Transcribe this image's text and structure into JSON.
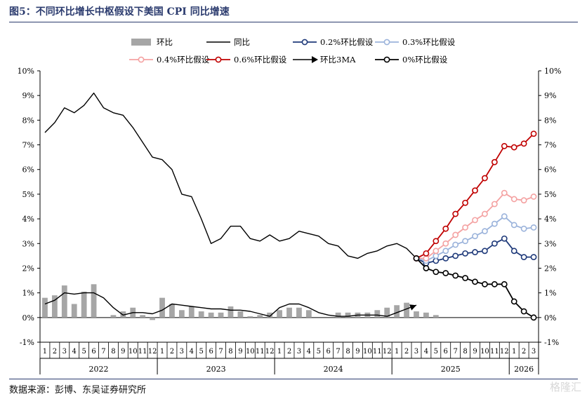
{
  "figure": {
    "title": "图5：不同环比增长中枢假设下美国 CPI 同比增速",
    "source": "数据来源：彭博、东吴证券研究所",
    "watermark": "格隆汇"
  },
  "chart_data": {
    "type": "line",
    "ylim": [
      -1,
      10
    ],
    "yticks": [
      "-1%",
      "0%",
      "1%",
      "2%",
      "3%",
      "4%",
      "5%",
      "6%",
      "7%",
      "8%",
      "9%",
      "10%"
    ],
    "grid": false,
    "legend_position": "top",
    "months": [
      "1",
      "2",
      "3",
      "4",
      "5",
      "6",
      "7",
      "8",
      "9",
      "10",
      "11",
      "12",
      "1",
      "2",
      "3",
      "4",
      "5",
      "6",
      "7",
      "8",
      "9",
      "10",
      "11",
      "12",
      "1",
      "2",
      "3",
      "4",
      "5",
      "6",
      "7",
      "8",
      "9",
      "10",
      "11",
      "12",
      "1",
      "2",
      "3",
      "4",
      "5",
      "6",
      "7",
      "8",
      "9",
      "10",
      "11",
      "12",
      "1",
      "2",
      "3"
    ],
    "years": [
      {
        "label": "2022",
        "start": 0,
        "end": 11
      },
      {
        "label": "2023",
        "start": 12,
        "end": 23
      },
      {
        "label": "2024",
        "start": 24,
        "end": 35
      },
      {
        "label": "2025",
        "start": 36,
        "end": 47
      },
      {
        "label": "2026",
        "start": 48,
        "end": 50
      }
    ],
    "series": [
      {
        "name": "环比",
        "style": "bar",
        "color": "#a6a6a6",
        "x_start": 0,
        "values": [
          0.8,
          0.9,
          1.3,
          0.55,
          1.05,
          1.35,
          0.0,
          0.1,
          0.25,
          0.4,
          0.1,
          -0.1,
          0.8,
          0.55,
          0.3,
          0.45,
          0.25,
          0.2,
          0.2,
          0.45,
          0.25,
          0.05,
          0.1,
          0.2,
          0.3,
          0.4,
          0.4,
          0.3,
          0.0,
          0.0,
          0.2,
          0.2,
          0.2,
          0.2,
          0.3,
          0.4,
          0.5,
          0.6,
          0.25,
          0.2,
          0.1
        ]
      },
      {
        "name": "同比",
        "style": "line",
        "color": "#000000",
        "x_start": 0,
        "values": [
          7.5,
          7.9,
          8.5,
          8.3,
          8.6,
          9.1,
          8.5,
          8.3,
          8.2,
          7.7,
          7.1,
          6.5,
          6.4,
          6.0,
          5.0,
          4.9,
          4.0,
          3.0,
          3.2,
          3.7,
          3.7,
          3.2,
          3.1,
          3.35,
          3.1,
          3.2,
          3.5,
          3.4,
          3.3,
          3.0,
          2.9,
          2.5,
          2.4,
          2.6,
          2.7,
          2.9,
          3.0,
          2.8,
          2.4
        ]
      },
      {
        "name": "0.2%环比假设",
        "style": "line-marker",
        "color": "#1f3a7a",
        "x_start": 38,
        "values": [
          2.4,
          2.2,
          2.3,
          2.4,
          2.5,
          2.6,
          2.65,
          2.7,
          3.0,
          3.2,
          2.7,
          2.45,
          2.45
        ]
      },
      {
        "name": "0.3%环比假设",
        "style": "line-marker",
        "color": "#9bb3db",
        "x_start": 38,
        "values": [
          2.4,
          2.3,
          2.5,
          2.7,
          2.95,
          3.1,
          3.3,
          3.5,
          3.8,
          4.1,
          3.75,
          3.6,
          3.65
        ]
      },
      {
        "name": "0.4%环比假设",
        "style": "line-marker",
        "color": "#f4a2a2",
        "x_start": 38,
        "values": [
          2.4,
          2.4,
          2.7,
          3.0,
          3.35,
          3.65,
          3.95,
          4.2,
          4.6,
          5.05,
          4.8,
          4.75,
          4.9
        ]
      },
      {
        "name": "0.6%环比假设",
        "style": "line-marker",
        "color": "#c00000",
        "x_start": 38,
        "values": [
          2.4,
          2.6,
          3.1,
          3.6,
          4.2,
          4.65,
          5.15,
          5.65,
          6.3,
          6.95,
          6.9,
          7.05,
          7.45
        ]
      },
      {
        "name": "环比3MA",
        "style": "line-arrow",
        "color": "#000000",
        "x_start": 0,
        "values": [
          0.55,
          0.7,
          1.0,
          0.95,
          1.0,
          1.0,
          0.8,
          0.4,
          0.1,
          0.2,
          0.2,
          0.15,
          0.3,
          0.55,
          0.5,
          0.45,
          0.4,
          0.35,
          0.35,
          0.3,
          0.3,
          0.25,
          0.15,
          0.05,
          0.4,
          0.55,
          0.55,
          0.4,
          0.2,
          0.1,
          0.05,
          0.05,
          0.1,
          0.1,
          0.1,
          0.05,
          0.2,
          0.35,
          0.5
        ]
      },
      {
        "name": "0%环比假设",
        "style": "line-marker",
        "color": "#000000",
        "x_start": 38,
        "values": [
          2.4,
          2.0,
          1.85,
          1.8,
          1.7,
          1.6,
          1.45,
          1.35,
          1.35,
          1.35,
          0.65,
          0.25,
          0.0
        ]
      }
    ]
  }
}
